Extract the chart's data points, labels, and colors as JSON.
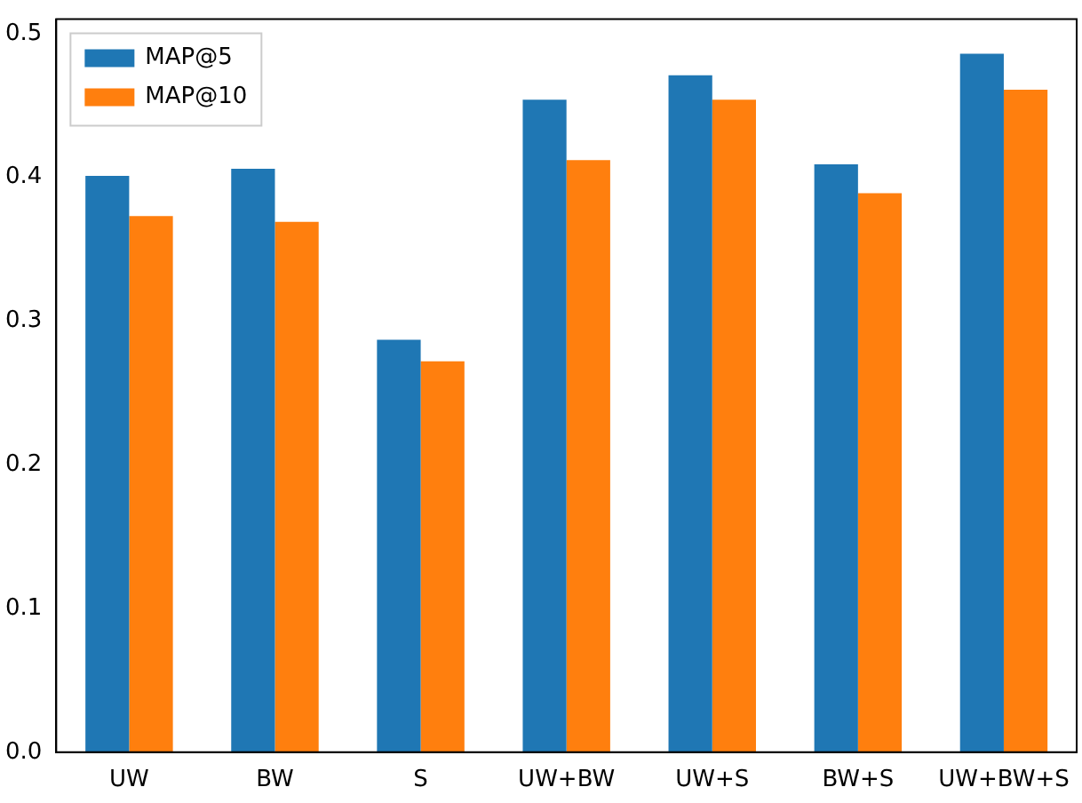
{
  "chart_data": {
    "type": "bar",
    "categories": [
      "UW",
      "BW",
      "S",
      "UW+BW",
      "UW+S",
      "BW+S",
      "UW+BW+S"
    ],
    "series": [
      {
        "name": "MAP@5",
        "color": "#1f77b4",
        "values": [
          0.401,
          0.406,
          0.287,
          0.454,
          0.471,
          0.409,
          0.486
        ]
      },
      {
        "name": "MAP@10",
        "color": "#ff7f0e",
        "values": [
          0.373,
          0.369,
          0.272,
          0.412,
          0.454,
          0.389,
          0.461
        ]
      }
    ],
    "ylim": [
      0,
      0.51
    ],
    "yticks": [
      {
        "value": 0,
        "label": "0.0"
      },
      {
        "value": 0.1,
        "label": "0.1"
      },
      {
        "value": 0.2,
        "label": "0.2"
      },
      {
        "value": 0.3,
        "label": "0.3"
      },
      {
        "value": 0.4,
        "label": "0.4"
      },
      {
        "value": 0.5,
        "label": "0.5"
      }
    ],
    "grid": false,
    "legend": "top left"
  }
}
